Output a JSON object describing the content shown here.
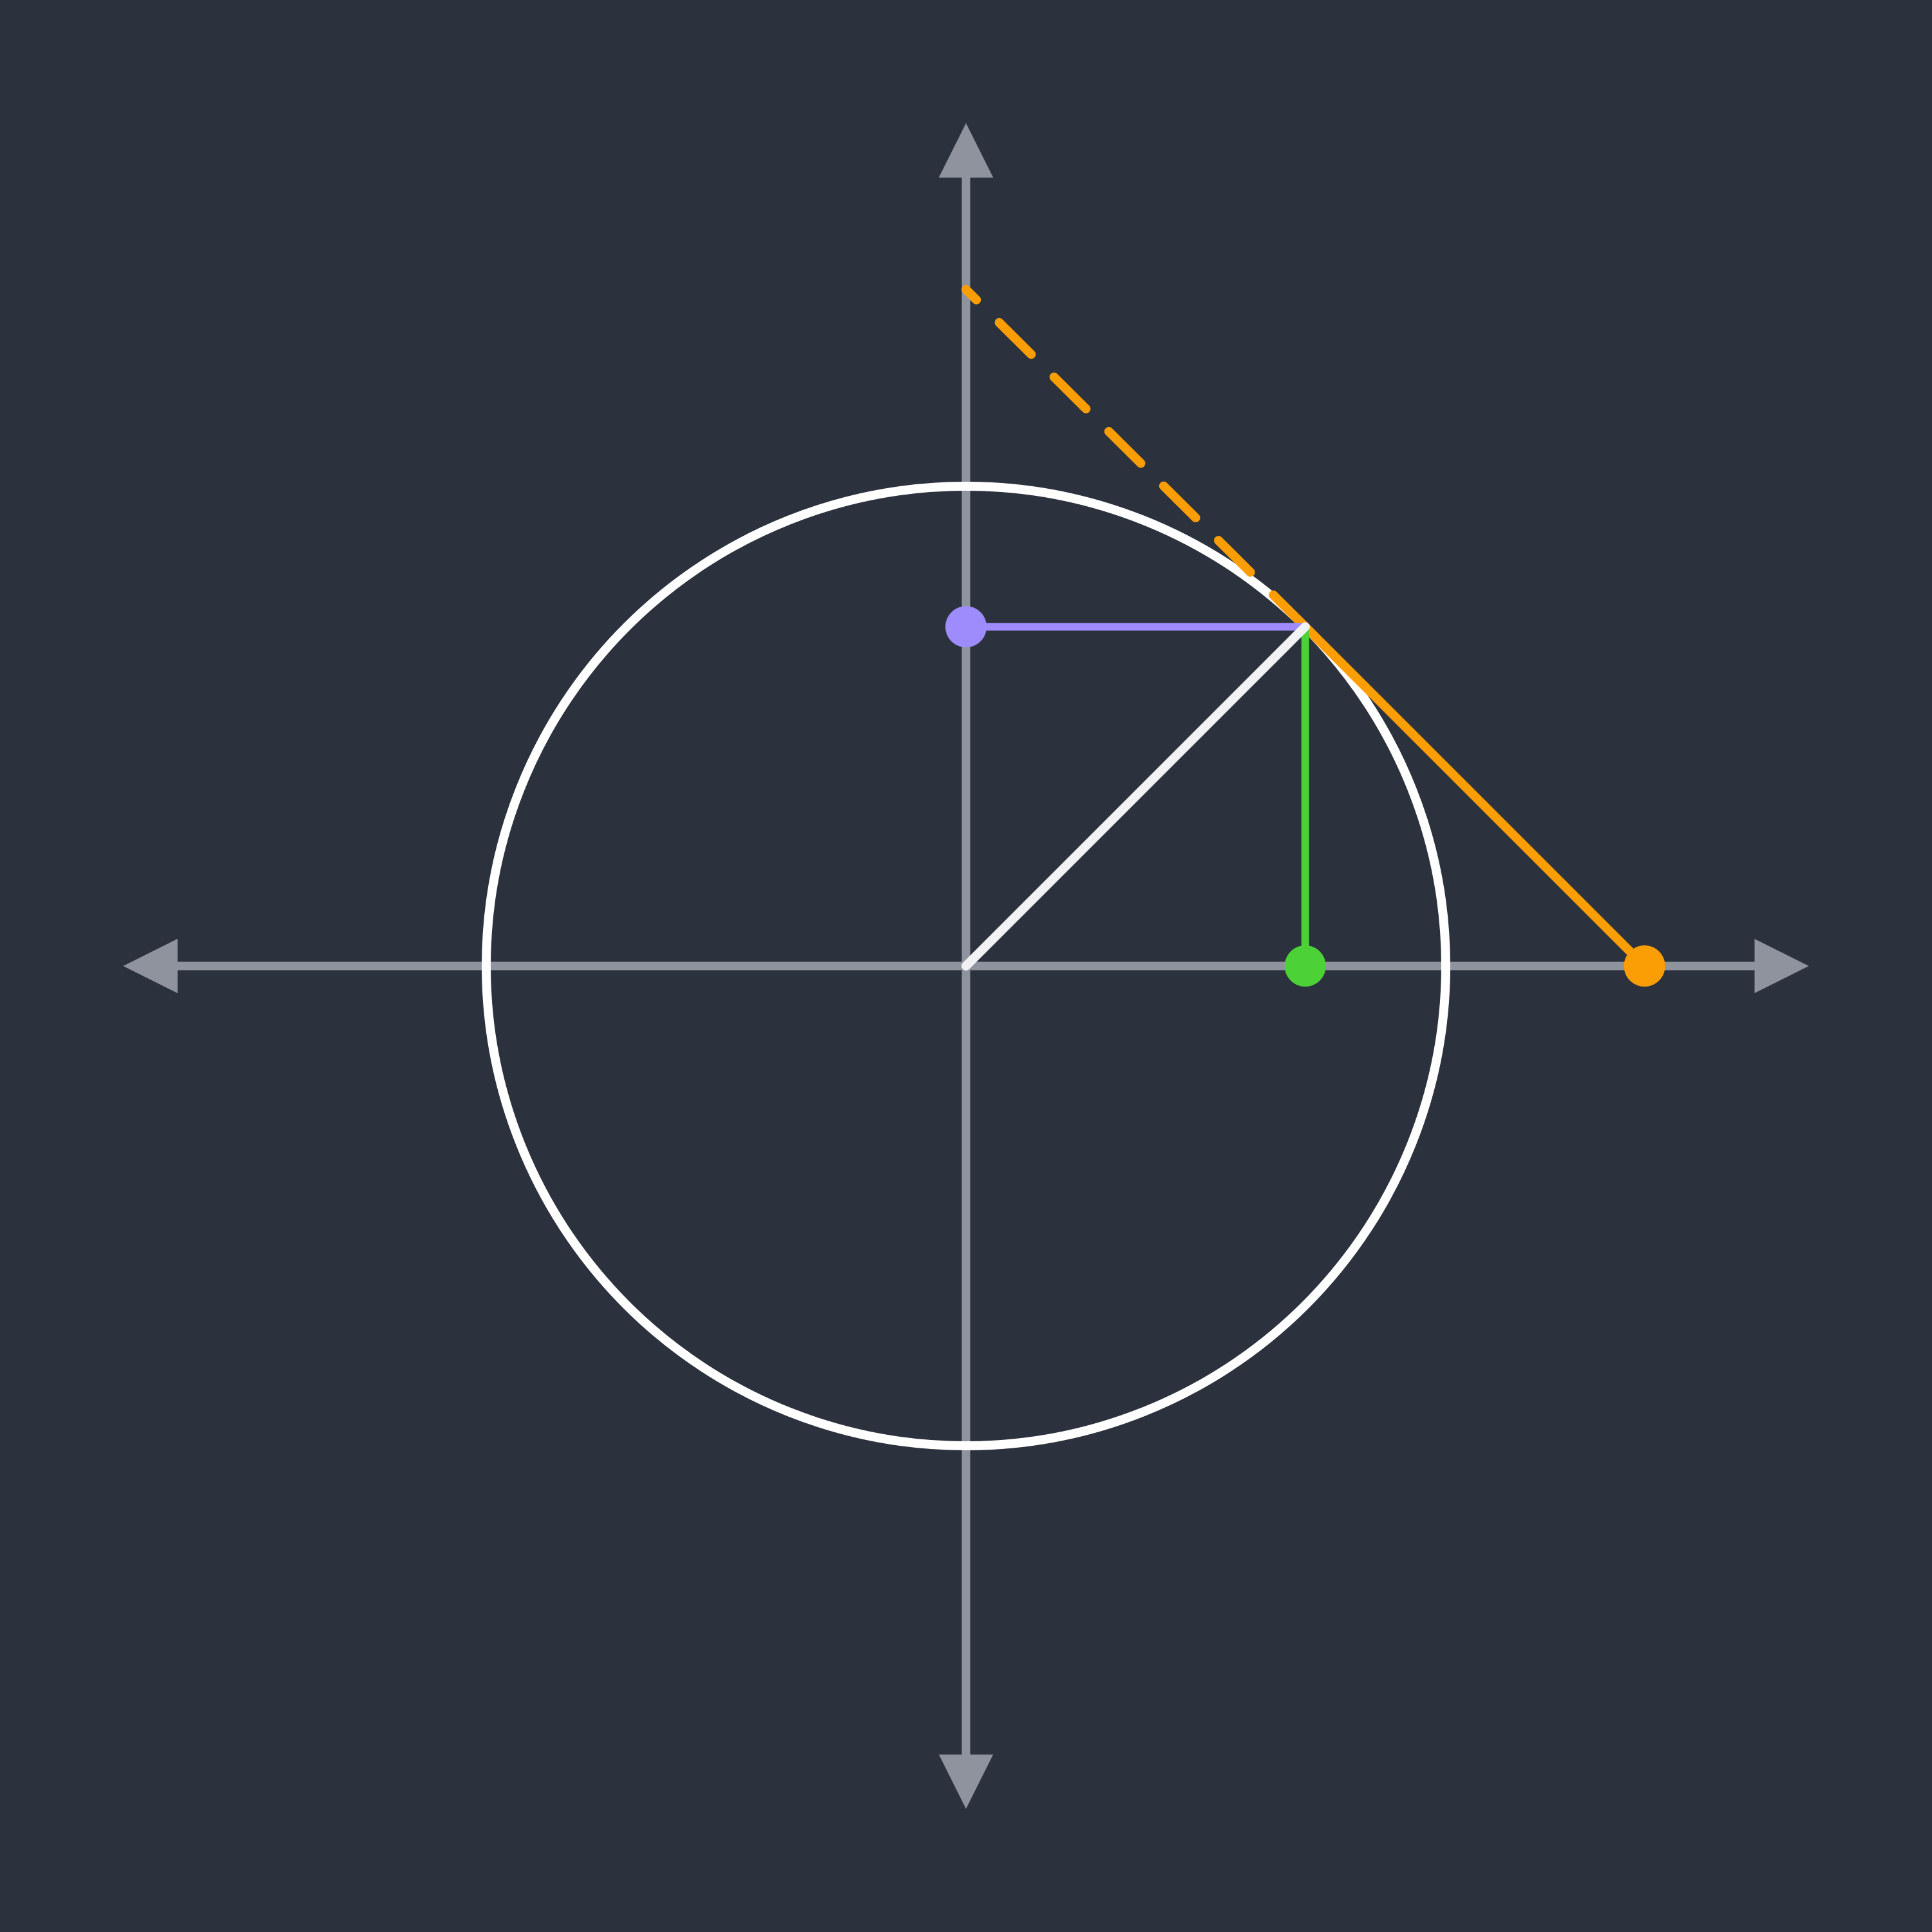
{
  "diagram": {
    "subject": "unit circle",
    "angle_degrees": 45,
    "radius": 1,
    "axis_extent": 1.7,
    "tangent_dash_ends_at_y": 1.41,
    "colors": {
      "background": "#2b323d",
      "axes": "#8e939e",
      "circle": "#ffffff",
      "radius_line": "#f2f2f4",
      "cosine": "#4cd137",
      "sine": "#9e8cfc",
      "tangent": "#fb9e06"
    },
    "points": [
      {
        "name": "origin",
        "x": 0,
        "y": 0,
        "color_key": "radius_line",
        "marker": false
      },
      {
        "name": "circle-point",
        "x": 0.7071,
        "y": 0.7071,
        "color_key": "radius_line",
        "marker": false
      },
      {
        "name": "cosine-point",
        "x": 0.7071,
        "y": 0,
        "color_key": "cosine",
        "marker": true
      },
      {
        "name": "sine-point",
        "x": 0,
        "y": 0.7071,
        "color_key": "sine",
        "marker": true
      },
      {
        "name": "tangent-x-intercept",
        "x": 1.4142,
        "y": 0,
        "color_key": "tangent",
        "marker": true
      }
    ]
  }
}
